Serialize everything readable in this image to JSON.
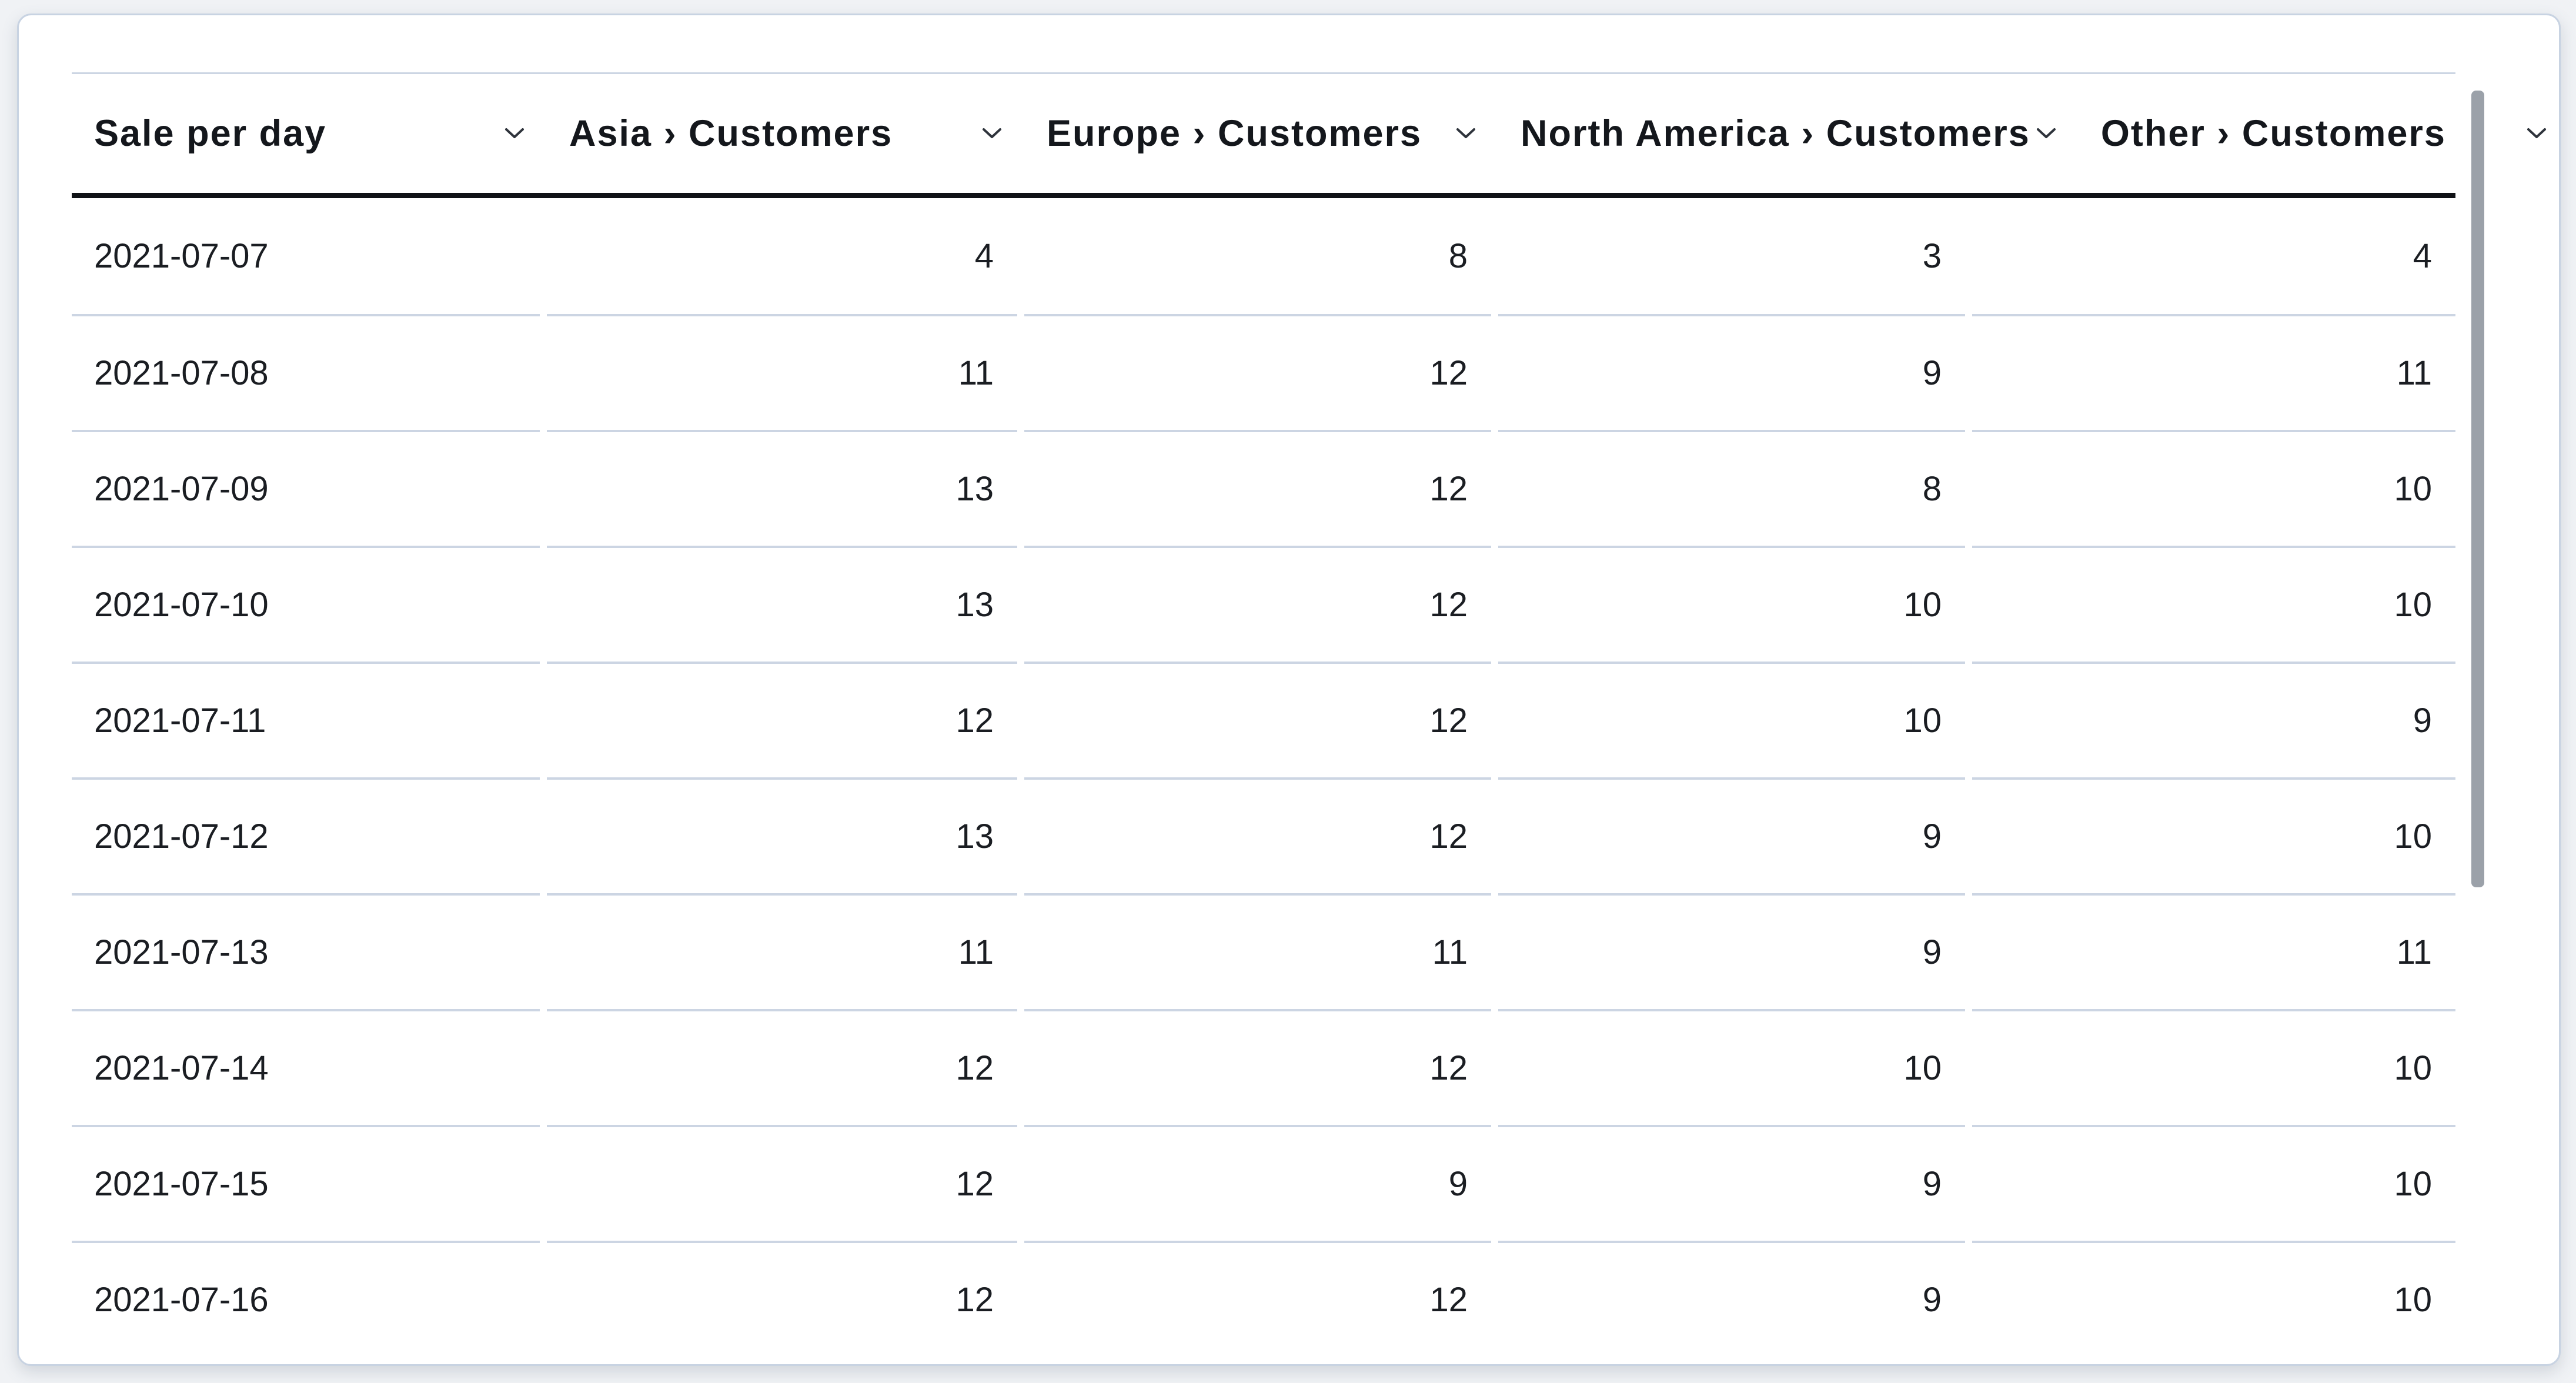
{
  "page": {
    "background": "#f0f2f5"
  },
  "card": {
    "background": "#ffffff",
    "border_color": "#c8d3e2"
  },
  "table": {
    "columns": [
      {
        "key": "sale-per-day",
        "label": "Sale per day",
        "visible_label": "Sale per day",
        "align": "left",
        "sort_icon": "chevron-down"
      },
      {
        "key": "asia-customers",
        "label": "Asia › Customers",
        "visible_label": "Asia › Customer",
        "align": "right",
        "sort_icon": "chevron-down"
      },
      {
        "key": "europe-customers",
        "label": "Europe › Customers",
        "visible_label": "Europe › Custom",
        "align": "right",
        "sort_icon": "chevron-down"
      },
      {
        "key": "north-america-customers",
        "label": "North America › Customers",
        "visible_label": "North America ›",
        "align": "right",
        "sort_icon": "chevron-down"
      },
      {
        "key": "other-customers",
        "label": "Other › Customers",
        "visible_label": "Other › Custome",
        "align": "right",
        "sort_icon": "chevron-down"
      }
    ],
    "rows": [
      [
        "2021-07-07",
        4,
        8,
        3,
        4
      ],
      [
        "2021-07-08",
        11,
        12,
        9,
        11
      ],
      [
        "2021-07-09",
        13,
        12,
        8,
        10
      ],
      [
        "2021-07-10",
        13,
        12,
        10,
        10
      ],
      [
        "2021-07-11",
        12,
        12,
        10,
        9
      ],
      [
        "2021-07-12",
        13,
        12,
        9,
        10
      ],
      [
        "2021-07-13",
        11,
        11,
        9,
        11
      ],
      [
        "2021-07-14",
        12,
        12,
        10,
        10
      ],
      [
        "2021-07-15",
        12,
        9,
        9,
        10
      ],
      [
        "2021-07-16",
        12,
        12,
        9,
        10
      ]
    ],
    "divider_color": "#ccd5e3",
    "header_rule_color": "#101216",
    "text_color": "#1a1d22"
  },
  "scrollbar": {
    "orientation": "vertical",
    "thumb_color": "#9ba1a9"
  },
  "chart_data": {
    "type": "table",
    "title": "Sale per day",
    "columns": [
      "Sale per day",
      "Asia › Customers",
      "Europe › Customers",
      "North America › Customers",
      "Other › Customers"
    ],
    "rows": [
      [
        "2021-07-07",
        4,
        8,
        3,
        4
      ],
      [
        "2021-07-08",
        11,
        12,
        9,
        11
      ],
      [
        "2021-07-09",
        13,
        12,
        8,
        10
      ],
      [
        "2021-07-10",
        13,
        12,
        10,
        10
      ],
      [
        "2021-07-11",
        12,
        12,
        10,
        9
      ],
      [
        "2021-07-12",
        13,
        12,
        9,
        10
      ],
      [
        "2021-07-13",
        11,
        11,
        9,
        11
      ],
      [
        "2021-07-14",
        12,
        12,
        10,
        10
      ],
      [
        "2021-07-15",
        12,
        9,
        9,
        10
      ],
      [
        "2021-07-16",
        12,
        12,
        9,
        10
      ]
    ]
  }
}
